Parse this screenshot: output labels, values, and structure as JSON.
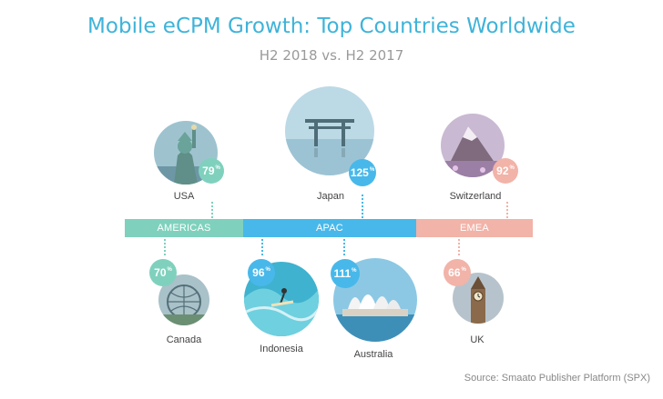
{
  "title": "Mobile eCPM Growth: Top Countries Worldwide",
  "subtitle": "H2 2018 vs. H2 2017",
  "regions": {
    "americas": {
      "label": "AMERICAS",
      "color": "#7fd1bd"
    },
    "apac": {
      "label": "APAC",
      "color": "#48b8ea"
    },
    "emea": {
      "label": "EMEA",
      "color": "#f2b3a8"
    }
  },
  "countries": {
    "usa": {
      "name": "USA",
      "value": "79",
      "unit": "%",
      "photo": "statue-of-liberty"
    },
    "japan": {
      "name": "Japan",
      "value": "125",
      "unit": "%",
      "photo": "torii-gate"
    },
    "switzerland": {
      "name": "Switzerland",
      "value": "92",
      "unit": "%",
      "photo": "matterhorn"
    },
    "canada": {
      "name": "Canada",
      "value": "70",
      "unit": "%",
      "photo": "biosphere"
    },
    "indonesia": {
      "name": "Indonesia",
      "value": "96",
      "unit": "%",
      "photo": "surfer"
    },
    "australia": {
      "name": "Australia",
      "value": "111",
      "unit": "%",
      "photo": "sydney-opera-house"
    },
    "uk": {
      "name": "UK",
      "value": "66",
      "unit": "%",
      "photo": "big-ben"
    }
  },
  "source": "Source: Smaato Publisher Platform (SPX)"
}
